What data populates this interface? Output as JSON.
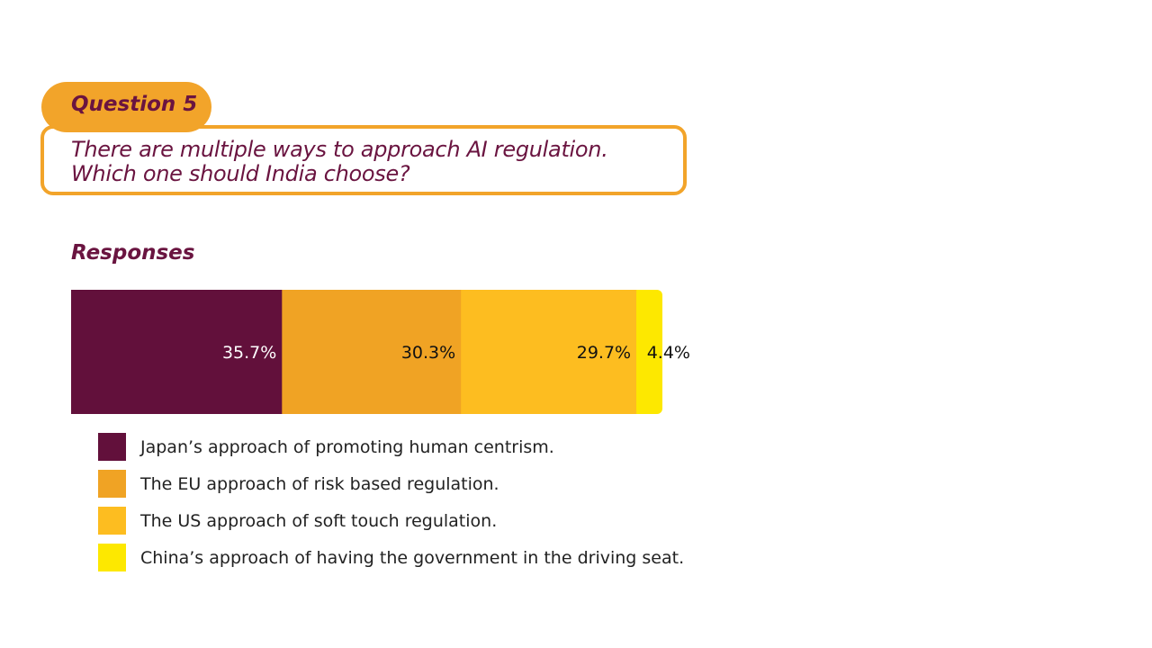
{
  "question": {
    "label": "Question 5",
    "text_line1": "There are multiple ways to approach AI regulation.",
    "text_line2": "Which one should India choose?"
  },
  "responses_heading": "Responses",
  "chart_data": {
    "type": "bar",
    "orientation": "horizontal-stacked",
    "categories": [
      "Japan’s approach of promoting human centrism.",
      "The EU approach of risk based regulation.",
      "The US approach of soft touch regulation.",
      "China’s approach of having the government in the driving seat."
    ],
    "values": [
      35.7,
      30.3,
      29.7,
      4.4
    ],
    "labels": [
      "35.7%",
      "30.3%",
      "29.7%",
      "4.4%"
    ],
    "colors": [
      "#62103b",
      "#f0a324",
      "#fdbd20",
      "#fde800"
    ],
    "label_colors": [
      "#ffffff",
      "#111111",
      "#111111",
      "#111111"
    ],
    "unit": "%",
    "legend_placement": "bottom",
    "grid": false
  }
}
